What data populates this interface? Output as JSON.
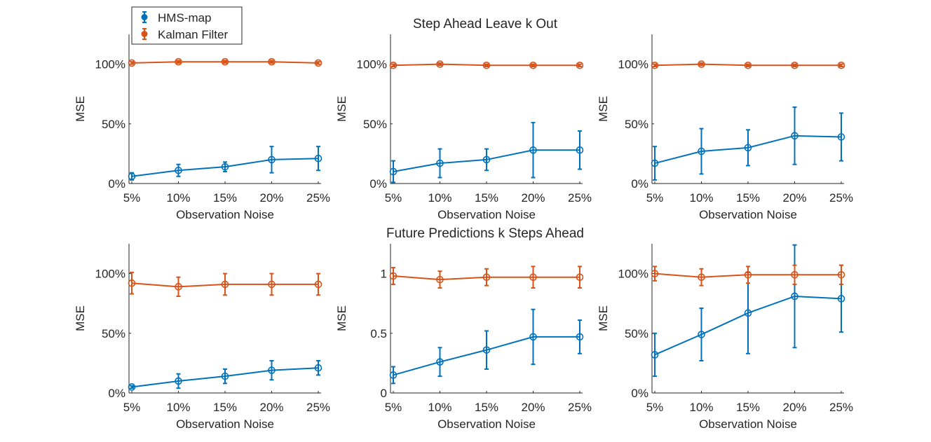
{
  "colors": {
    "hms": "#0072BD",
    "kalman": "#D95319",
    "axis": "#262626"
  },
  "legend": {
    "items": [
      "HMS-map",
      "Kalman Filter"
    ]
  },
  "row_titles": [
    "Step Ahead Leave k Out",
    "Future Predictions k Steps Ahead"
  ],
  "chart_data": [
    {
      "type": "line",
      "title": "Step Ahead Leave k Out",
      "xlabel": "Observation Noise",
      "ylabel": "MSE",
      "categories": [
        "5%",
        "10%",
        "15%",
        "20%",
        "25%"
      ],
      "yticks": [
        0,
        0.5,
        1
      ],
      "ytick_labels": [
        "0%",
        "50%",
        "100%"
      ],
      "ylim": [
        0,
        1.25
      ],
      "series": [
        {
          "name": "HMS-map",
          "values": [
            0.06,
            0.11,
            0.14,
            0.2,
            0.21
          ],
          "err": [
            0.03,
            0.05,
            0.04,
            0.11,
            0.1
          ]
        },
        {
          "name": "Kalman Filter",
          "values": [
            1.01,
            1.02,
            1.02,
            1.02,
            1.01
          ],
          "err": [
            0.01,
            0.01,
            0.01,
            0.01,
            0.01
          ]
        }
      ]
    },
    {
      "type": "line",
      "xlabel": "Observation Noise",
      "ylabel": "MSE",
      "categories": [
        "5%",
        "10%",
        "15%",
        "20%",
        "25%"
      ],
      "yticks": [
        0,
        0.5,
        1
      ],
      "ytick_labels": [
        "0%",
        "50%",
        "100%"
      ],
      "ylim": [
        0,
        1.25
      ],
      "series": [
        {
          "name": "HMS-map",
          "values": [
            0.1,
            0.17,
            0.2,
            0.28,
            0.28
          ],
          "err": [
            0.09,
            0.12,
            0.09,
            0.23,
            0.16
          ]
        },
        {
          "name": "Kalman Filter",
          "values": [
            0.99,
            1.0,
            0.99,
            0.99,
            0.99
          ],
          "err": [
            0.01,
            0.01,
            0.01,
            0.01,
            0.01
          ]
        }
      ]
    },
    {
      "type": "line",
      "xlabel": "Observation Noise",
      "ylabel": "MSE",
      "categories": [
        "5%",
        "10%",
        "15%",
        "20%",
        "25%"
      ],
      "yticks": [
        0,
        0.5,
        1
      ],
      "ytick_labels": [
        "0%",
        "50%",
        "100%"
      ],
      "ylim": [
        0,
        1.25
      ],
      "series": [
        {
          "name": "HMS-map",
          "values": [
            0.17,
            0.27,
            0.3,
            0.4,
            0.39
          ],
          "err": [
            0.14,
            0.19,
            0.15,
            0.24,
            0.2
          ]
        },
        {
          "name": "Kalman Filter",
          "values": [
            0.99,
            1.0,
            0.99,
            0.99,
            0.99
          ],
          "err": [
            0.01,
            0.01,
            0.01,
            0.01,
            0.01
          ]
        }
      ]
    },
    {
      "type": "line",
      "title": "Future Predictions k Steps Ahead",
      "xlabel": "Observation Noise",
      "ylabel": "MSE",
      "categories": [
        "5%",
        "10%",
        "15%",
        "20%",
        "25%"
      ],
      "yticks": [
        0,
        0.5,
        1
      ],
      "ytick_labels": [
        "0%",
        "50%",
        "100%"
      ],
      "ylim": [
        0,
        1.25
      ],
      "series": [
        {
          "name": "HMS-map",
          "values": [
            0.05,
            0.1,
            0.14,
            0.19,
            0.21
          ],
          "err": [
            0.01,
            0.06,
            0.06,
            0.08,
            0.06
          ]
        },
        {
          "name": "Kalman Filter",
          "values": [
            0.92,
            0.89,
            0.91,
            0.91,
            0.91
          ],
          "err": [
            0.09,
            0.08,
            0.09,
            0.09,
            0.09
          ]
        }
      ]
    },
    {
      "type": "line",
      "xlabel": "Observation Noise",
      "ylabel": "MSE",
      "categories": [
        "5%",
        "10%",
        "15%",
        "20%",
        "25%"
      ],
      "yticks": [
        0,
        0.5,
        1
      ],
      "ytick_labels": [
        "0",
        "0.5",
        "1"
      ],
      "ylim": [
        0,
        1.25
      ],
      "series": [
        {
          "name": "HMS-map",
          "values": [
            0.15,
            0.26,
            0.36,
            0.47,
            0.47
          ],
          "err": [
            0.07,
            0.12,
            0.16,
            0.23,
            0.14
          ]
        },
        {
          "name": "Kalman Filter",
          "values": [
            0.98,
            0.95,
            0.97,
            0.97,
            0.97
          ],
          "err": [
            0.07,
            0.07,
            0.07,
            0.09,
            0.09
          ]
        }
      ]
    },
    {
      "type": "line",
      "xlabel": "Observation Noise",
      "ylabel": "MSE",
      "categories": [
        "5%",
        "10%",
        "15%",
        "20%",
        "25%"
      ],
      "yticks": [
        0,
        0.5,
        1
      ],
      "ytick_labels": [
        "0%",
        "50%",
        "100%"
      ],
      "ylim": [
        0,
        1.25
      ],
      "series": [
        {
          "name": "HMS-map",
          "values": [
            0.32,
            0.49,
            0.67,
            0.81,
            0.79
          ],
          "err": [
            0.18,
            0.22,
            0.34,
            0.43,
            0.28
          ]
        },
        {
          "name": "Kalman Filter",
          "values": [
            1.0,
            0.97,
            0.99,
            0.99,
            0.99
          ],
          "err": [
            0.06,
            0.07,
            0.07,
            0.08,
            0.08
          ]
        }
      ]
    }
  ]
}
